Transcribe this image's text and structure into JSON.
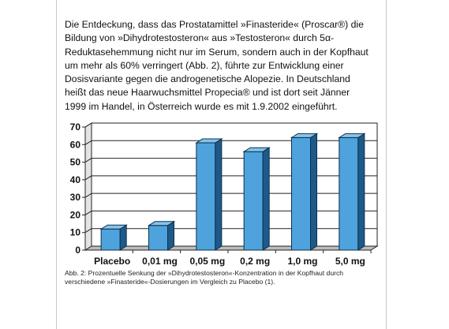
{
  "paragraph": "Die Entdeckung, dass das Prostatamittel »Finasteride« (Proscar®) die Bildung von »Dihydrotestosteron« aus »Testosteron« durch 5α-Reduktasehemmung nicht nur im Serum, sondern auch in der Kopfhaut um mehr als 60% verringert (Abb. 2), führte zur Entwicklung einer Dosisvariante gegen die androgenetische Alopezie. In Deutschland heißt das neue Haarwuchsmittel Propecia® und ist dort seit Jänner 1999 im Handel, in Österreich wurde es mit 1.9.2002 eingeführt.",
  "caption": "Abb. 2: Prozentuelle Senkung der »Dihydrotestosteron«-Konzentration in der Kopfhaut durch verschiedene »Finasteride«-Dosierungen im Vergleich zu Placebo (1).",
  "chart_data": {
    "type": "bar",
    "categories": [
      "Placebo",
      "0,01 mg",
      "0,05 mg",
      "0,2 mg",
      "1,0 mg",
      "5,0 mg"
    ],
    "values": [
      12,
      14,
      61,
      56,
      64,
      64
    ],
    "ylim": [
      0,
      70
    ],
    "yticks": [
      "0",
      "10",
      "20",
      "30",
      "40",
      "50",
      "60",
      "70"
    ],
    "grid": true,
    "title": "",
    "xlabel": "",
    "ylabel": "",
    "colors": {
      "bar_front": "#4ea3dc",
      "bar_side": "#1c5a8a",
      "bar_top": "#86c3ec",
      "wall": "#ffffff",
      "floor": "#bdbdbd"
    }
  }
}
